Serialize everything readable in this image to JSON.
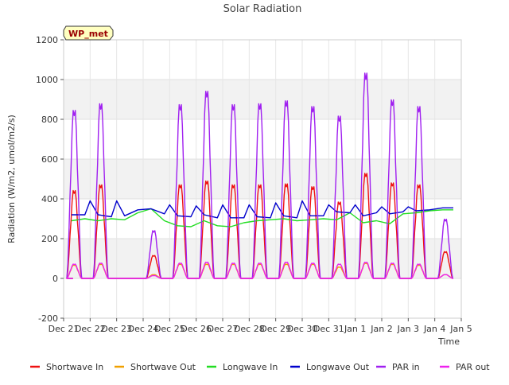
{
  "chart_data": {
    "type": "line",
    "title": "Solar Radiation",
    "xlabel": "Time",
    "ylabel": "Radiation (W/m2, umol/m2/s)",
    "ylim": [
      -200,
      1200
    ],
    "yticks": [
      -200,
      0,
      200,
      400,
      600,
      800,
      1000,
      1200
    ],
    "xlim": [
      0,
      15
    ],
    "xticks": [
      0,
      1,
      2,
      3,
      4,
      5,
      6,
      7,
      8,
      9,
      10,
      11,
      12,
      13,
      14,
      15
    ],
    "xtick_labels": [
      "Dec 21",
      "Dec 22",
      "Dec 23",
      "Dec 24",
      "Dec 25",
      "Dec 26",
      "Dec 27",
      "Dec 28",
      "Dec 29",
      "Dec 30",
      "Dec 31",
      "Jan 1",
      "Jan 2",
      "Jan 3",
      "Jan 4",
      "Jan 5"
    ],
    "grid": true,
    "band_shading": true,
    "legend_position": "bottom",
    "station_label": "WP_met",
    "series": [
      {
        "name": "Shortwave In",
        "color": "#ee1111",
        "style": "diurnal",
        "x": [
          0.4,
          1.4,
          2.4,
          3.4,
          4.4,
          5.4,
          6.4,
          7.4,
          8.4,
          9.4,
          10.4,
          11.4,
          12.4,
          13.4,
          14.4
        ],
        "values": [
          460,
          490,
          0,
          120,
          490,
          510,
          490,
          490,
          495,
          480,
          400,
          550,
          500,
          490,
          140
        ]
      },
      {
        "name": "Shortwave Out",
        "color": "#f0a000",
        "style": "diurnal",
        "x": [
          0.4,
          1.4,
          2.4,
          3.4,
          4.4,
          5.4,
          6.4,
          7.4,
          8.4,
          9.4,
          10.4,
          11.4,
          12.4,
          13.4,
          14.4
        ],
        "values": [
          70,
          75,
          0,
          20,
          75,
          75,
          75,
          75,
          75,
          75,
          60,
          80,
          75,
          70,
          20
        ]
      },
      {
        "name": "Longwave In",
        "color": "#22dd22",
        "style": "line",
        "x": [
          0.3,
          0.8,
          1.3,
          1.8,
          2.3,
          2.8,
          3.3,
          3.8,
          4.3,
          4.8,
          5.3,
          5.8,
          6.3,
          6.8,
          7.3,
          7.8,
          8.3,
          8.8,
          9.3,
          9.8,
          10.3,
          10.8,
          11.3,
          11.8,
          12.3,
          12.8,
          13.3,
          13.8,
          14.3,
          14.7
        ],
        "values": [
          290,
          300,
          290,
          300,
          295,
          330,
          350,
          290,
          265,
          260,
          290,
          265,
          260,
          280,
          290,
          295,
          300,
          290,
          295,
          300,
          295,
          330,
          280,
          290,
          275,
          325,
          330,
          340,
          345,
          345
        ]
      },
      {
        "name": "Longwave Out",
        "color": "#0000cc",
        "style": "line",
        "x": [
          0.3,
          0.8,
          1.0,
          1.3,
          1.8,
          2.0,
          2.3,
          2.8,
          3.3,
          3.8,
          4.0,
          4.3,
          4.8,
          5.0,
          5.3,
          5.8,
          6.0,
          6.3,
          6.8,
          7.0,
          7.3,
          7.8,
          8.0,
          8.3,
          8.8,
          9.0,
          9.3,
          9.8,
          10.0,
          10.3,
          10.8,
          11.0,
          11.3,
          11.8,
          12.0,
          12.3,
          12.8,
          13.0,
          13.3,
          13.8,
          14.3,
          14.7
        ],
        "values": [
          320,
          320,
          390,
          320,
          310,
          390,
          315,
          345,
          350,
          325,
          370,
          315,
          310,
          365,
          320,
          305,
          370,
          305,
          305,
          370,
          310,
          305,
          380,
          315,
          305,
          390,
          315,
          315,
          370,
          335,
          330,
          370,
          315,
          330,
          360,
          325,
          335,
          360,
          340,
          345,
          355,
          355
        ]
      },
      {
        "name": "PAR in",
        "color": "#a020f0",
        "style": "diurnal",
        "x": [
          0.4,
          1.4,
          2.4,
          3.4,
          4.4,
          5.4,
          6.4,
          7.4,
          8.4,
          9.4,
          10.4,
          11.4,
          12.4,
          13.4,
          14.4
        ],
        "values": [
          880,
          915,
          0,
          250,
          910,
          980,
          910,
          915,
          930,
          900,
          850,
          1075,
          935,
          900,
          310
        ]
      },
      {
        "name": "PAR out",
        "color": "#ee22ee",
        "style": "diurnal",
        "x": [
          0.4,
          1.4,
          2.4,
          3.4,
          4.4,
          5.4,
          6.4,
          7.4,
          8.4,
          9.4,
          10.4,
          11.4,
          12.4,
          13.4,
          14.4
        ],
        "values": [
          75,
          80,
          0,
          15,
          80,
          85,
          80,
          80,
          85,
          80,
          75,
          85,
          80,
          75,
          20
        ]
      }
    ]
  }
}
